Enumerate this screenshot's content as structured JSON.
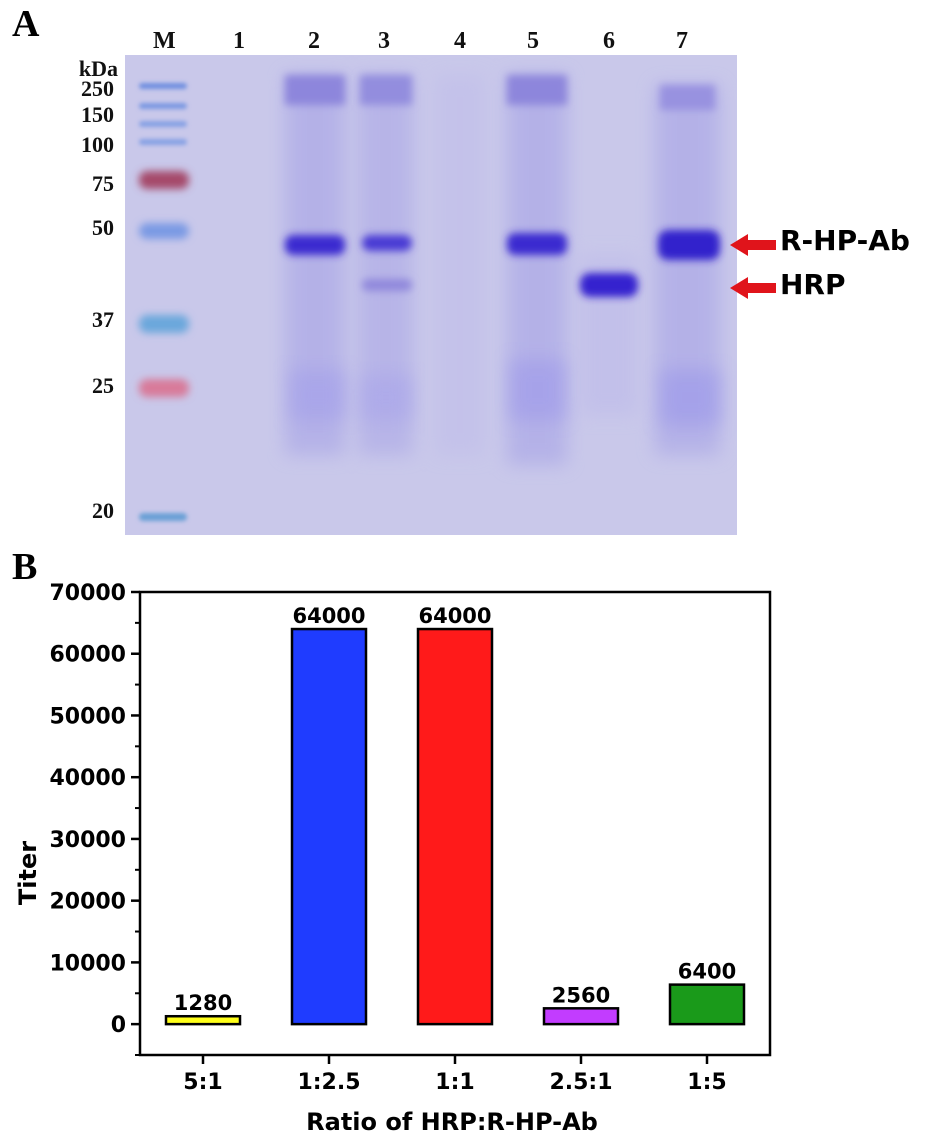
{
  "panel_a": {
    "letter": "A",
    "lane_labels": [
      "M",
      "1",
      "2",
      "3",
      "4",
      "5",
      "6",
      "7"
    ],
    "unit_label": "kDa",
    "marker_labels": [
      "250",
      "150",
      "100",
      "75",
      "50",
      "37",
      "25",
      "20"
    ],
    "bands": [
      {
        "label": "R-HP-Ab",
        "arrow_color": "#e0141b"
      },
      {
        "label": "HRP",
        "arrow_color": "#e0141b"
      }
    ]
  },
  "panel_b": {
    "letter": "B"
  },
  "chart_data": {
    "type": "bar",
    "categories": [
      "5:1",
      "1:2.5",
      "1:1",
      "2.5:1",
      "1:5"
    ],
    "values": [
      1280,
      64000,
      64000,
      2560,
      6400
    ],
    "value_labels": [
      "1280",
      "64000",
      "64000",
      "2560",
      "6400"
    ],
    "colors": [
      "#ffff1a",
      "#1f3cff",
      "#ff1a1a",
      "#c23cff",
      "#1a9a1a"
    ],
    "xlabel": "Ratio of HRP:R-HP-Ab",
    "ylabel": "Titer",
    "ylim": [
      -5000,
      70000
    ],
    "yticks": [
      0,
      10000,
      20000,
      30000,
      40000,
      50000,
      60000,
      70000
    ],
    "ytick_labels": [
      "0",
      "10000",
      "20000",
      "30000",
      "40000",
      "50000",
      "60000",
      "70000"
    ],
    "grid": false
  }
}
